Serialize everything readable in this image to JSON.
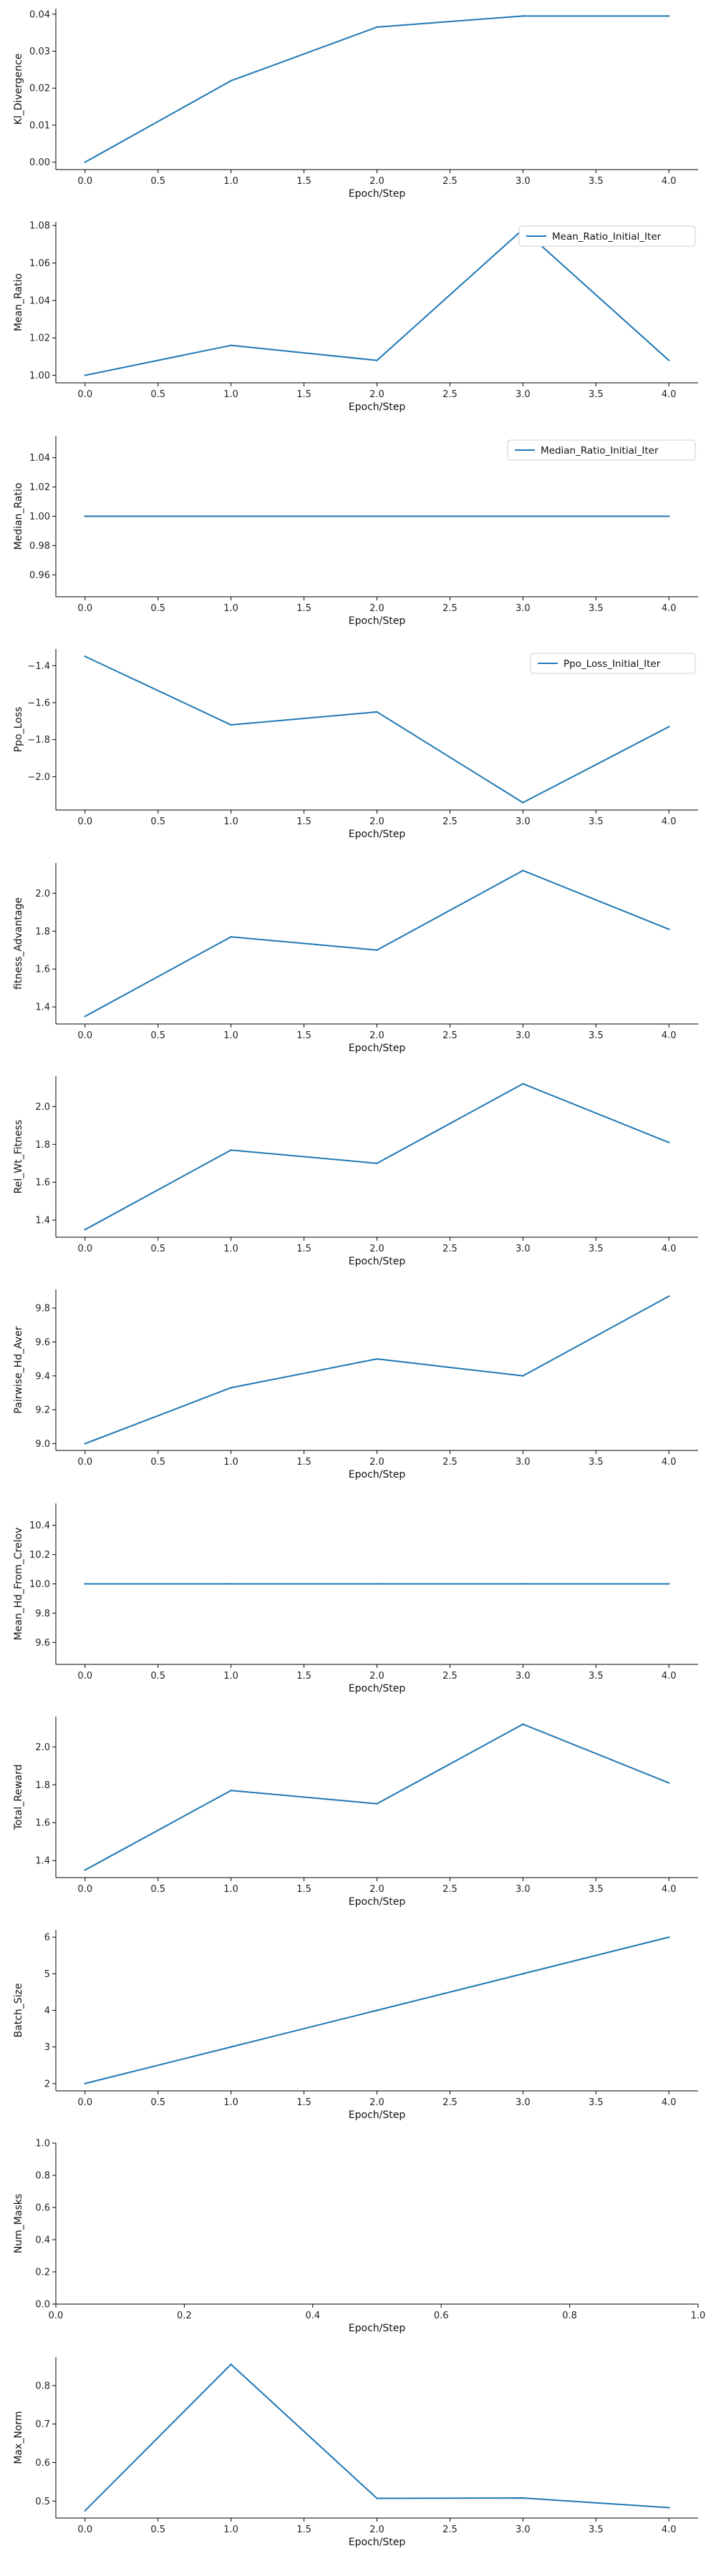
{
  "line_color": "#1f77b4",
  "chart_data": [
    {
      "type": "line",
      "xlabel": "Epoch/Step",
      "ylabel": "Kl_Divergence",
      "x": [
        0,
        1,
        2,
        3,
        4
      ],
      "series": [
        {
          "values": [
            0.0,
            0.022,
            0.0365,
            0.0395,
            0.0395
          ]
        }
      ],
      "ylim": [
        -0.002,
        0.0415
      ],
      "xlim": [
        -0.2,
        4.2
      ],
      "yticks": [
        0.0,
        0.01,
        0.02,
        0.03,
        0.04
      ],
      "ytick_labels": [
        "0.00",
        "0.01",
        "0.02",
        "0.03",
        "0.04"
      ],
      "xticks": [
        0,
        0.5,
        1,
        1.5,
        2,
        2.5,
        3,
        3.5,
        4
      ],
      "xtick_labels": [
        "0.0",
        "0.5",
        "1.0",
        "1.5",
        "2.0",
        "2.5",
        "3.0",
        "3.5",
        "4.0"
      ],
      "legend": null
    },
    {
      "type": "line",
      "xlabel": "Epoch/Step",
      "ylabel": "Mean_Ratio",
      "x": [
        0,
        1,
        2,
        3,
        4
      ],
      "series": [
        {
          "name": "Mean_Ratio_Initial_Iter",
          "values": [
            1.0,
            1.016,
            1.008,
            1.078,
            1.008
          ]
        }
      ],
      "ylim": [
        0.996,
        1.082
      ],
      "xlim": [
        -0.2,
        4.2
      ],
      "yticks": [
        1.0,
        1.02,
        1.04,
        1.06,
        1.08
      ],
      "ytick_labels": [
        "1.00",
        "1.02",
        "1.04",
        "1.06",
        "1.08"
      ],
      "xticks": [
        0,
        0.5,
        1,
        1.5,
        2,
        2.5,
        3,
        3.5,
        4
      ],
      "xtick_labels": [
        "0.0",
        "0.5",
        "1.0",
        "1.5",
        "2.0",
        "2.5",
        "3.0",
        "3.5",
        "4.0"
      ],
      "legend": "top-right"
    },
    {
      "type": "line",
      "xlabel": "Epoch/Step",
      "ylabel": "Median_Ratio",
      "x": [
        0,
        1,
        2,
        3,
        4
      ],
      "series": [
        {
          "name": "Median_Ratio_Initial_Iter",
          "values": [
            1.0,
            1.0,
            1.0,
            1.0,
            1.0
          ]
        }
      ],
      "ylim": [
        0.945,
        1.055
      ],
      "xlim": [
        -0.2,
        4.2
      ],
      "yticks": [
        0.96,
        0.98,
        1.0,
        1.02,
        1.04
      ],
      "ytick_labels": [
        "0.96",
        "0.98",
        "1.00",
        "1.02",
        "1.04"
      ],
      "xticks": [
        0,
        0.5,
        1,
        1.5,
        2,
        2.5,
        3,
        3.5,
        4
      ],
      "xtick_labels": [
        "0.0",
        "0.5",
        "1.0",
        "1.5",
        "2.0",
        "2.5",
        "3.0",
        "3.5",
        "4.0"
      ],
      "legend": "top-right"
    },
    {
      "type": "line",
      "xlabel": "Epoch/Step",
      "ylabel": "Ppo_Loss",
      "x": [
        0,
        1,
        2,
        3,
        4
      ],
      "series": [
        {
          "name": "Ppo_Loss_Initial_Iter",
          "values": [
            -1.35,
            -1.72,
            -1.65,
            -2.14,
            -1.73
          ]
        }
      ],
      "ylim": [
        -2.18,
        -1.31
      ],
      "xlim": [
        -0.2,
        4.2
      ],
      "yticks": [
        -2.0,
        -1.8,
        -1.6,
        -1.4
      ],
      "ytick_labels": [
        "−2.0",
        "−1.8",
        "−1.6",
        "−1.4"
      ],
      "xticks": [
        0,
        0.5,
        1,
        1.5,
        2,
        2.5,
        3,
        3.5,
        4
      ],
      "xtick_labels": [
        "0.0",
        "0.5",
        "1.0",
        "1.5",
        "2.0",
        "2.5",
        "3.0",
        "3.5",
        "4.0"
      ],
      "legend": "top-right"
    },
    {
      "type": "line",
      "xlabel": "Epoch/Step",
      "ylabel": "fitness_Advantage",
      "x": [
        0,
        1,
        2,
        3,
        4
      ],
      "series": [
        {
          "values": [
            1.35,
            1.77,
            1.7,
            2.12,
            1.81
          ]
        }
      ],
      "ylim": [
        1.31,
        2.16
      ],
      "xlim": [
        -0.2,
        4.2
      ],
      "yticks": [
        1.4,
        1.6,
        1.8,
        2.0
      ],
      "ytick_labels": [
        "1.4",
        "1.6",
        "1.8",
        "2.0"
      ],
      "xticks": [
        0,
        0.5,
        1,
        1.5,
        2,
        2.5,
        3,
        3.5,
        4
      ],
      "xtick_labels": [
        "0.0",
        "0.5",
        "1.0",
        "1.5",
        "2.0",
        "2.5",
        "3.0",
        "3.5",
        "4.0"
      ],
      "legend": null
    },
    {
      "type": "line",
      "xlabel": "Epoch/Step",
      "ylabel": "Rel_Wt_Fitness",
      "x": [
        0,
        1,
        2,
        3,
        4
      ],
      "series": [
        {
          "values": [
            1.35,
            1.77,
            1.7,
            2.12,
            1.81
          ]
        }
      ],
      "ylim": [
        1.31,
        2.16
      ],
      "xlim": [
        -0.2,
        4.2
      ],
      "yticks": [
        1.4,
        1.6,
        1.8,
        2.0
      ],
      "ytick_labels": [
        "1.4",
        "1.6",
        "1.8",
        "2.0"
      ],
      "xticks": [
        0,
        0.5,
        1,
        1.5,
        2,
        2.5,
        3,
        3.5,
        4
      ],
      "xtick_labels": [
        "0.0",
        "0.5",
        "1.0",
        "1.5",
        "2.0",
        "2.5",
        "3.0",
        "3.5",
        "4.0"
      ],
      "legend": null
    },
    {
      "type": "line",
      "xlabel": "Epoch/Step",
      "ylabel": "Pairwise_Hd_Aver",
      "x": [
        0,
        1,
        2,
        3,
        4
      ],
      "series": [
        {
          "values": [
            9.0,
            9.33,
            9.5,
            9.4,
            9.87
          ]
        }
      ],
      "ylim": [
        8.96,
        9.91
      ],
      "xlim": [
        -0.2,
        4.2
      ],
      "yticks": [
        9.0,
        9.2,
        9.4,
        9.6,
        9.8
      ],
      "ytick_labels": [
        "9.0",
        "9.2",
        "9.4",
        "9.6",
        "9.8"
      ],
      "xticks": [
        0,
        0.5,
        1,
        1.5,
        2,
        2.5,
        3,
        3.5,
        4
      ],
      "xtick_labels": [
        "0.0",
        "0.5",
        "1.0",
        "1.5",
        "2.0",
        "2.5",
        "3.0",
        "3.5",
        "4.0"
      ],
      "legend": null
    },
    {
      "type": "line",
      "xlabel": "Epoch/Step",
      "ylabel": "Mean_Hd_From_Crelov",
      "x": [
        0,
        1,
        2,
        3,
        4
      ],
      "series": [
        {
          "values": [
            10.0,
            10.0,
            10.0,
            10.0,
            10.0
          ]
        }
      ],
      "ylim": [
        9.45,
        10.55
      ],
      "xlim": [
        -0.2,
        4.2
      ],
      "yticks": [
        9.6,
        9.8,
        10.0,
        10.2,
        10.4
      ],
      "ytick_labels": [
        "9.6",
        "9.8",
        "10.0",
        "10.2",
        "10.4"
      ],
      "xticks": [
        0,
        0.5,
        1,
        1.5,
        2,
        2.5,
        3,
        3.5,
        4
      ],
      "xtick_labels": [
        "0.0",
        "0.5",
        "1.0",
        "1.5",
        "2.0",
        "2.5",
        "3.0",
        "3.5",
        "4.0"
      ],
      "legend": null
    },
    {
      "type": "line",
      "xlabel": "Epoch/Step",
      "ylabel": "Total_Reward",
      "x": [
        0,
        1,
        2,
        3,
        4
      ],
      "series": [
        {
          "values": [
            1.35,
            1.77,
            1.7,
            2.12,
            1.81
          ]
        }
      ],
      "ylim": [
        1.31,
        2.16
      ],
      "xlim": [
        -0.2,
        4.2
      ],
      "yticks": [
        1.4,
        1.6,
        1.8,
        2.0
      ],
      "ytick_labels": [
        "1.4",
        "1.6",
        "1.8",
        "2.0"
      ],
      "xticks": [
        0,
        0.5,
        1,
        1.5,
        2,
        2.5,
        3,
        3.5,
        4
      ],
      "xtick_labels": [
        "0.0",
        "0.5",
        "1.0",
        "1.5",
        "2.0",
        "2.5",
        "3.0",
        "3.5",
        "4.0"
      ],
      "legend": null
    },
    {
      "type": "line",
      "xlabel": "Epoch/Step",
      "ylabel": "Batch_Size",
      "x": [
        0,
        1,
        2,
        3,
        4
      ],
      "series": [
        {
          "values": [
            2,
            3,
            4,
            5,
            6
          ]
        }
      ],
      "ylim": [
        1.8,
        6.2
      ],
      "xlim": [
        -0.2,
        4.2
      ],
      "yticks": [
        2,
        3,
        4,
        5,
        6
      ],
      "ytick_labels": [
        "2",
        "3",
        "4",
        "5",
        "6"
      ],
      "xticks": [
        0,
        0.5,
        1,
        1.5,
        2,
        2.5,
        3,
        3.5,
        4
      ],
      "xtick_labels": [
        "0.0",
        "0.5",
        "1.0",
        "1.5",
        "2.0",
        "2.5",
        "3.0",
        "3.5",
        "4.0"
      ],
      "legend": null
    },
    {
      "type": "line",
      "xlabel": "Epoch/Step",
      "ylabel": "Num_Masks",
      "x": [],
      "series": [],
      "ylim": [
        0,
        1
      ],
      "xlim": [
        0,
        1
      ],
      "yticks": [
        0.0,
        0.2,
        0.4,
        0.6,
        0.8,
        1.0
      ],
      "ytick_labels": [
        "0.0",
        "0.2",
        "0.4",
        "0.6",
        "0.8",
        "1.0"
      ],
      "xticks": [
        0.0,
        0.2,
        0.4,
        0.6,
        0.8,
        1.0
      ],
      "xtick_labels": [
        "0.0",
        "0.2",
        "0.4",
        "0.6",
        "0.8",
        "1.0"
      ],
      "legend": null
    },
    {
      "type": "line",
      "xlabel": "Epoch/Step",
      "ylabel": "Max_Norm",
      "x": [
        0,
        1,
        2,
        3,
        4
      ],
      "series": [
        {
          "values": [
            0.475,
            0.855,
            0.507,
            0.508,
            0.483
          ]
        }
      ],
      "ylim": [
        0.456,
        0.874
      ],
      "xlim": [
        -0.2,
        4.2
      ],
      "yticks": [
        0.5,
        0.6,
        0.7,
        0.8
      ],
      "ytick_labels": [
        "0.5",
        "0.6",
        "0.7",
        "0.8"
      ],
      "xticks": [
        0,
        0.5,
        1,
        1.5,
        2,
        2.5,
        3,
        3.5,
        4
      ],
      "xtick_labels": [
        "0.0",
        "0.5",
        "1.0",
        "1.5",
        "2.0",
        "2.5",
        "3.0",
        "3.5",
        "4.0"
      ],
      "legend": null
    }
  ]
}
